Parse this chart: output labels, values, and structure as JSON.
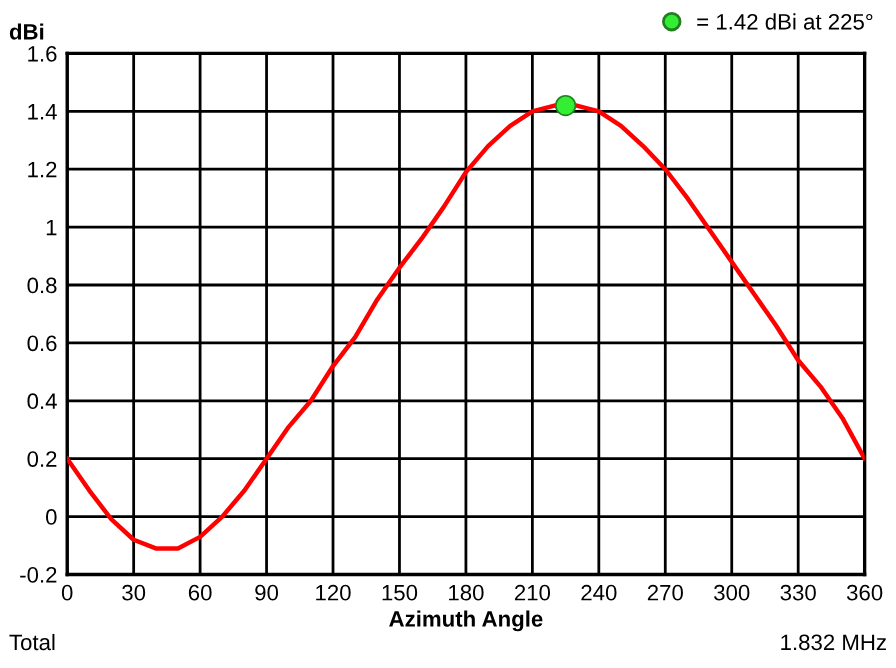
{
  "chart_data": {
    "type": "line",
    "xlabel": "Azimuth Angle",
    "ylabel": "dBi",
    "xlim": [
      0,
      360
    ],
    "xticks": [
      0,
      30,
      60,
      90,
      120,
      150,
      180,
      210,
      240,
      270,
      300,
      330,
      360
    ],
    "ylim": [
      -0.2,
      1.6
    ],
    "yticks": [
      -0.2,
      0,
      0.2,
      0.4,
      0.6,
      0.8,
      1,
      1.2,
      1.4,
      1.6
    ],
    "grid": true,
    "legend": "top right",
    "series": [
      {
        "color": "#ff0000",
        "x": [
          0,
          10,
          20,
          30,
          40,
          50,
          60,
          70,
          80,
          90,
          100,
          110,
          120,
          130,
          140,
          150,
          160,
          170,
          180,
          190,
          200,
          210,
          220,
          230,
          240,
          250,
          260,
          270,
          280,
          290,
          300,
          310,
          320,
          330,
          340,
          350,
          360
        ],
        "values": [
          0.2,
          0.09,
          -0.01,
          -0.08,
          -0.11,
          -0.11,
          -0.07,
          0.0,
          0.09,
          0.2,
          0.31,
          0.4,
          0.52,
          0.62,
          0.75,
          0.86,
          0.96,
          1.07,
          1.19,
          1.28,
          1.35,
          1.4,
          1.42,
          1.42,
          1.4,
          1.35,
          1.28,
          1.2,
          1.1,
          0.99,
          0.88,
          0.77,
          0.66,
          0.54,
          0.45,
          0.34,
          0.2
        ]
      },
      {
        "type": "scatter",
        "name": "= 1.42 dBi at 225°",
        "color": "#33ee33",
        "marker": "circle",
        "x": [
          225
        ],
        "values": [
          1.42
        ]
      }
    ],
    "annotations": [
      "Total",
      "1.832 MHz"
    ]
  }
}
